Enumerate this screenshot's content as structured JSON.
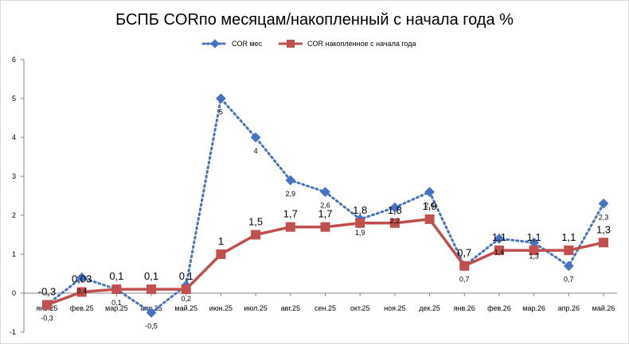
{
  "chart_data": {
    "type": "line",
    "title": "БСПБ  CORпо месяцам/накопленный с начала года %",
    "categories": [
      "янв.25",
      "фев.25",
      "мар.25",
      "апр.25",
      "май.25",
      "июн.25",
      "июл.25",
      "авг.25",
      "сен.25",
      "окт.25",
      "ноя.25",
      "дек.25",
      "янв.26",
      "фев.26",
      "мар.26",
      "апр.26",
      "май.26"
    ],
    "ylim": [
      -1,
      6
    ],
    "yticks": [
      "-1",
      "0",
      "1",
      "2",
      "3",
      "4",
      "5",
      "6"
    ],
    "legend_position": "top",
    "series": [
      {
        "name": "COR мес",
        "color": "#4472C4",
        "style": "dotted",
        "marker": "diamond",
        "values": [
          -0.3,
          0.4,
          0.1,
          -0.5,
          0.2,
          5,
          4,
          2.9,
          2.6,
          1.9,
          2.2,
          2.6,
          0.7,
          1.4,
          1.3,
          0.7,
          2.3
        ],
        "labels": [
          "-0,3",
          "0,4",
          "0,1",
          "-0,5",
          "0,2",
          "5",
          "4",
          "2,9",
          "2,6",
          "1,9",
          "2,2",
          "2,6",
          "0,7",
          "1,4",
          "1,3",
          "0,7",
          "2,3"
        ]
      },
      {
        "name": "COR накопленное с начала  года",
        "color": "#C0504D",
        "style": "solid",
        "marker": "square",
        "values": [
          -0.3,
          0.03,
          0.1,
          0.1,
          0.1,
          1,
          1.5,
          1.7,
          1.7,
          1.8,
          1.8,
          1.9,
          0.7,
          1.1,
          1.1,
          1.1,
          1.3
        ],
        "labels": [
          "-0,3",
          "0,03",
          "0,1",
          "0,1",
          "0,1",
          "1",
          "1,5",
          "1,7",
          "1,7",
          "1,8",
          "1,8",
          "1,9",
          "0,7",
          "1,1",
          "1,1",
          "1,1",
          "1,3"
        ]
      }
    ]
  }
}
